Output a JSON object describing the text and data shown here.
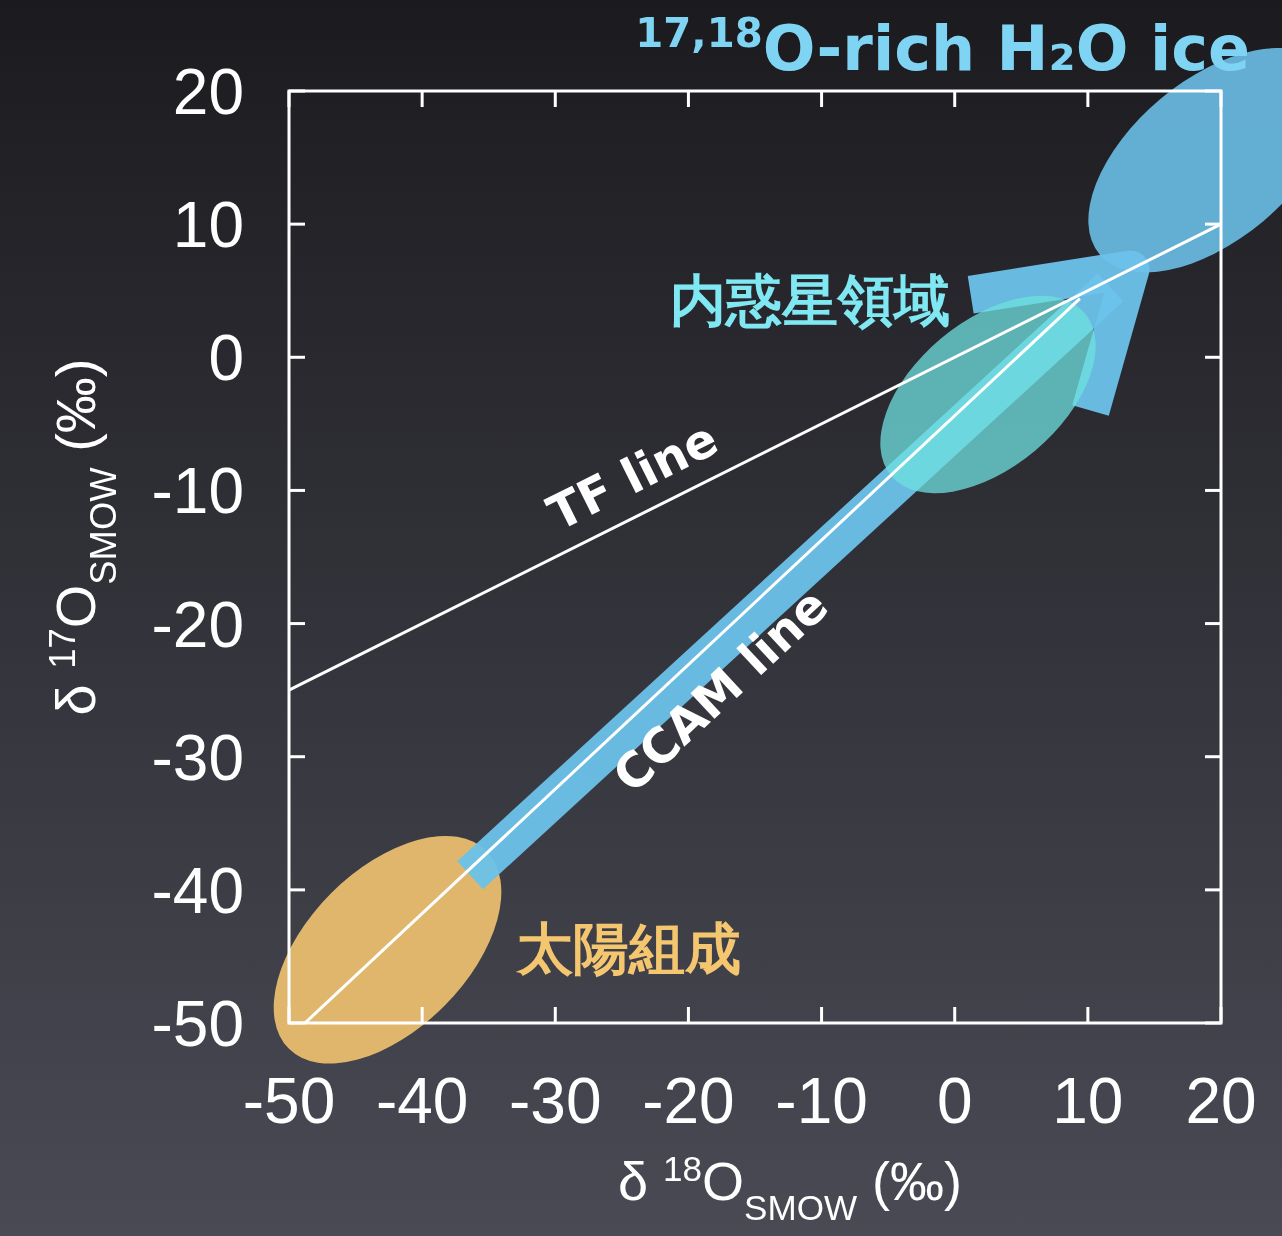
{
  "chart_data": {
    "type": "line",
    "title": "$^{17,18}$O-rich H₂O ice",
    "xlabel": "δ $^{18}$O$_{SMOW}$ (‰)",
    "ylabel": "δ $^{17}$O$_{SMOW}$ (‰)",
    "xlim": [
      -50,
      20
    ],
    "ylim": [
      -50,
      20
    ],
    "xticks": [
      -50,
      -40,
      -30,
      -20,
      -10,
      0,
      10,
      20
    ],
    "yticks": [
      -50,
      -40,
      -30,
      -20,
      -10,
      0,
      10,
      20
    ],
    "grid": false,
    "marker": "none",
    "line_style": "solid",
    "series": [
      {
        "color": "#ffffff",
        "x": [
          -50,
          20
        ],
        "values": [
          -25,
          10
        ]
      },
      {
        "color": "#ffffff",
        "x": [
          -48.8,
          9.4
        ],
        "values": [
          -50,
          4.4
        ]
      }
    ],
    "annotations": [
      "TF line",
      "CCAM line",
      "内惑星領域",
      "太陽組成"
    ]
  }
}
